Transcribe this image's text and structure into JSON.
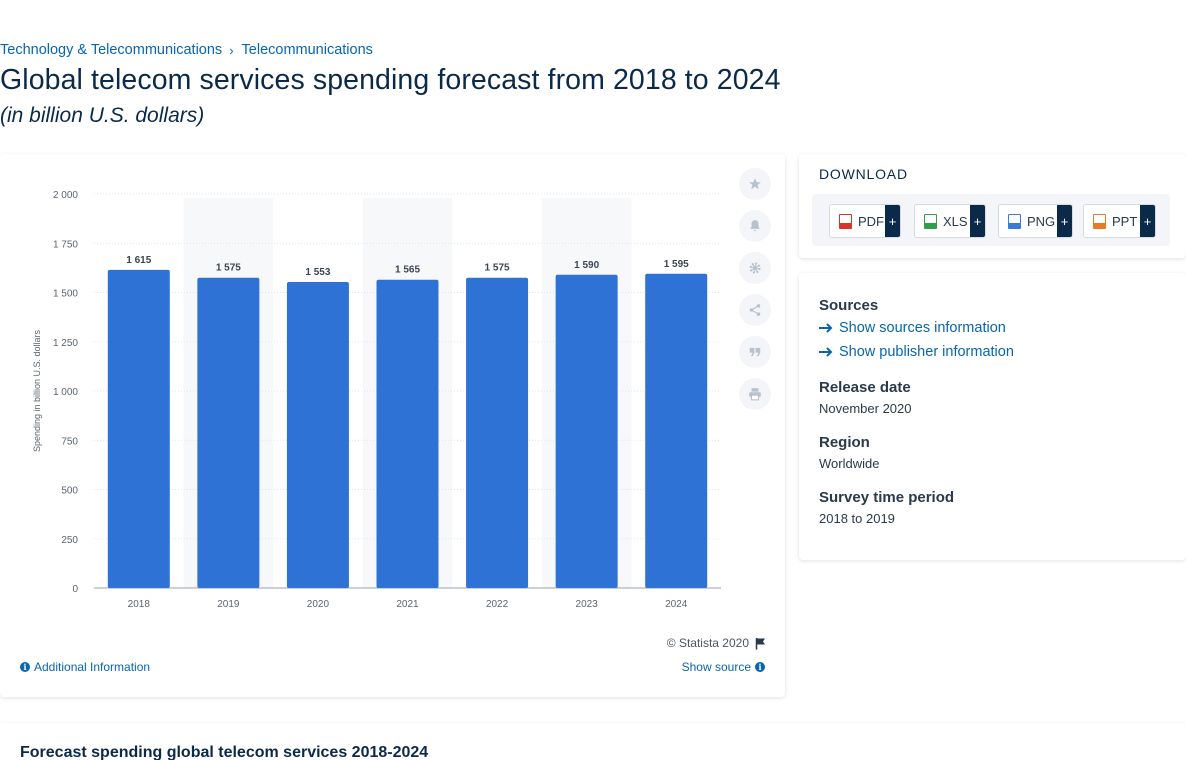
{
  "breadcrumb": {
    "items": [
      "Technology & Telecommunications",
      "Telecommunications"
    ],
    "separator": "›"
  },
  "title": "Global telecom services spending forecast from 2018 to 2024",
  "subtitle": "(in billion U.S. dollars)",
  "chart_data": {
    "type": "bar",
    "title": "",
    "xlabel": "",
    "ylabel": "Spending in billion U.S. dollars",
    "categories": [
      "2018",
      "2019",
      "2020",
      "2021",
      "2022",
      "2023",
      "2024"
    ],
    "values": [
      1615,
      1575,
      1553,
      1565,
      1575,
      1590,
      1595
    ],
    "data_labels": [
      "1 615",
      "1 575",
      "1 553",
      "1 565",
      "1 575",
      "1 590",
      "1 595"
    ],
    "yticks": [
      0,
      250,
      500,
      750,
      1000,
      1250,
      1500,
      1750,
      2000
    ],
    "ytick_labels": [
      "0",
      "250",
      "500",
      "750",
      "1 000",
      "1 250",
      "1 500",
      "1 750",
      "2 000"
    ],
    "ylim": [
      0,
      2000
    ],
    "grid": true,
    "bar_color": "#2f72d6"
  },
  "chart_footer": {
    "copyright": "© Statista 2020",
    "additional_info": "Additional Information",
    "show_source": "Show source"
  },
  "tools": [
    "star-icon",
    "bell-icon",
    "gear-icon",
    "share-icon",
    "quote-icon",
    "print-icon"
  ],
  "download": {
    "title": "DOWNLOAD",
    "buttons": [
      {
        "label": "PDF",
        "color": "#d9332b"
      },
      {
        "label": "XLS",
        "color": "#2e9e4b"
      },
      {
        "label": "PNG",
        "color": "#3a7bd5"
      },
      {
        "label": "PPT",
        "color": "#e87a2c"
      }
    ],
    "plus": "+"
  },
  "meta": {
    "sources_heading": "Sources",
    "show_sources": "Show sources information",
    "show_publisher": "Show publisher information",
    "release_heading": "Release date",
    "release_value": "November 2020",
    "region_heading": "Region",
    "region_value": "Worldwide",
    "period_heading": "Survey time period",
    "period_value": "2018 to 2019"
  },
  "bottom": {
    "title": "Forecast spending global telecom services 2018-2024"
  }
}
